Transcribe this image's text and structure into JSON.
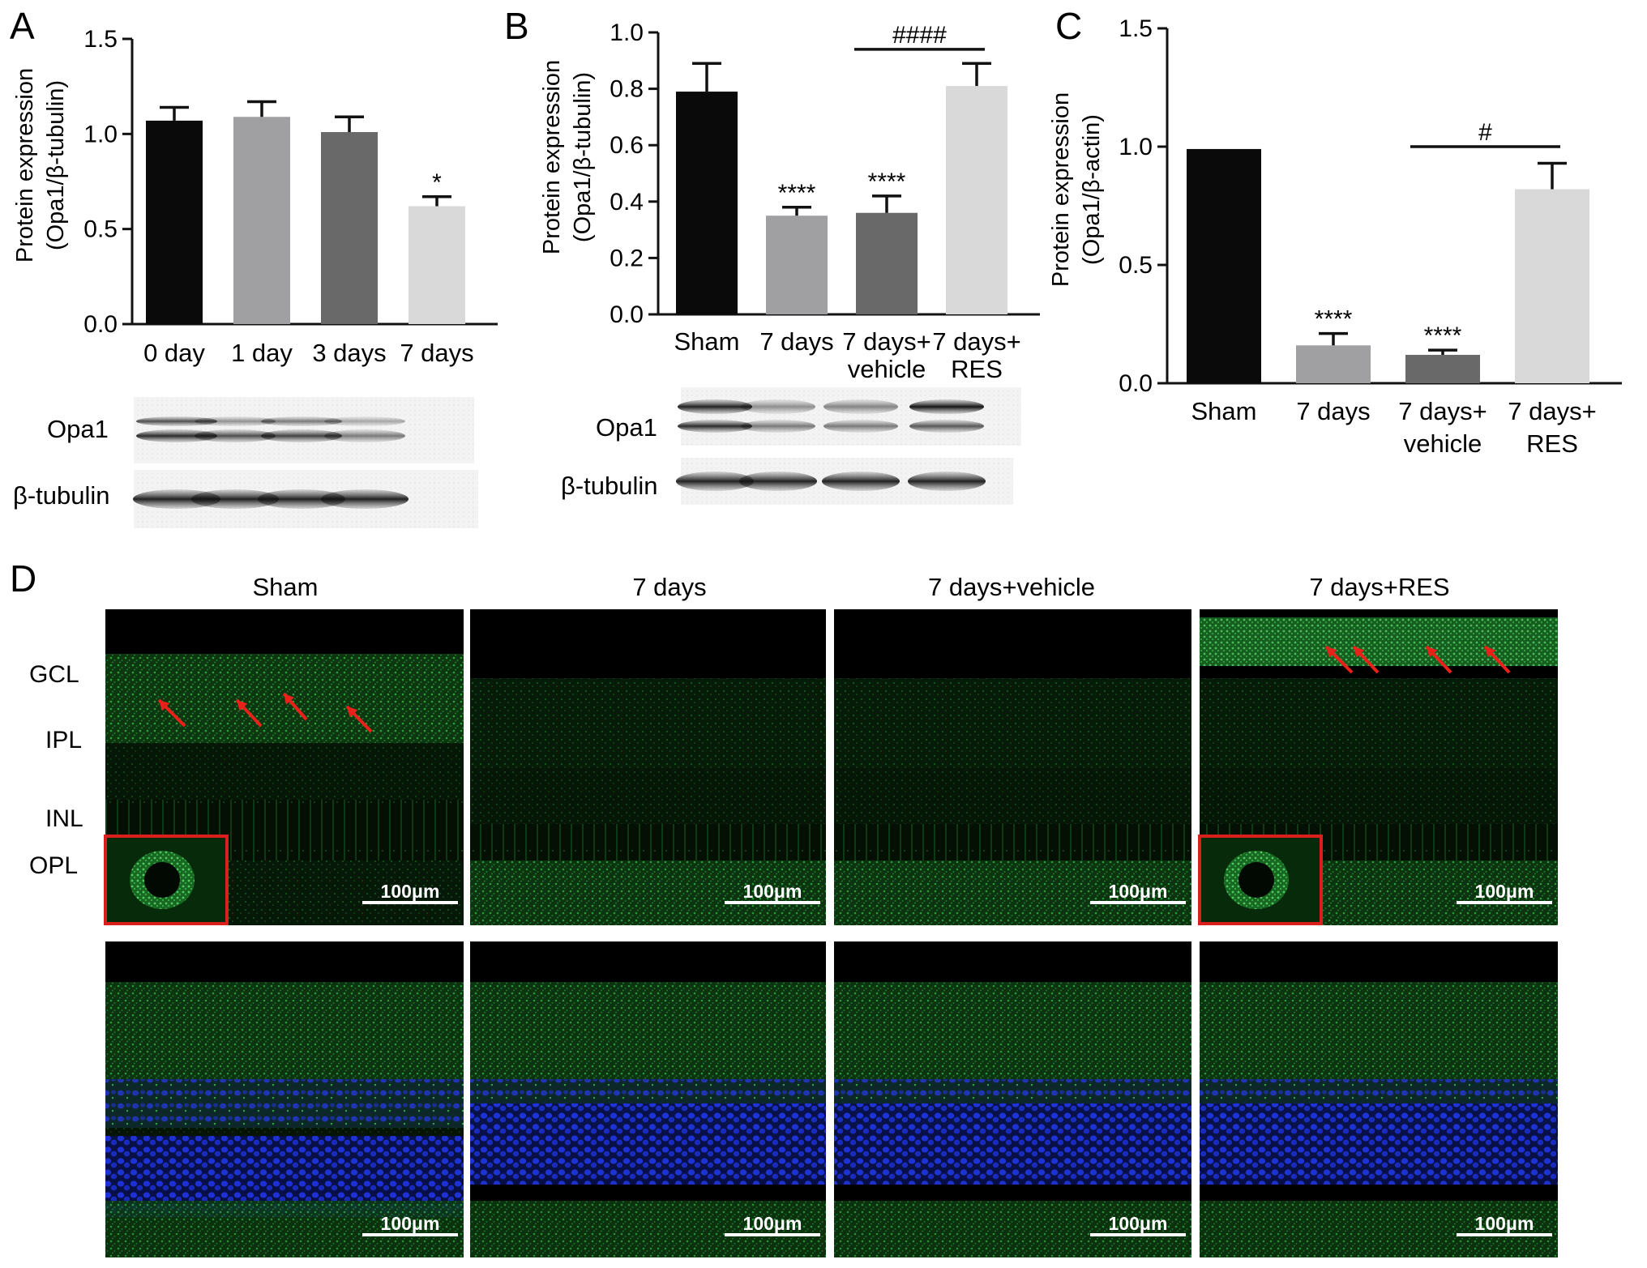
{
  "panels": {
    "A": {
      "label": "A"
    },
    "B": {
      "label": "B"
    },
    "C": {
      "label": "C"
    },
    "D": {
      "label": "D"
    }
  },
  "chart_data": [
    {
      "panel": "A",
      "type": "bar",
      "ylabel": [
        "Protein expression",
        "(Opa1/β-tubulin)"
      ],
      "ylim": [
        0,
        1.5
      ],
      "yticks": [
        "0.0",
        "0.5",
        "1.0",
        "1.5"
      ],
      "categories": [
        [
          "0 day"
        ],
        [
          "1 day"
        ],
        [
          "3 days"
        ],
        [
          "7 days"
        ]
      ],
      "values": [
        1.07,
        1.09,
        1.01,
        0.62
      ],
      "errors": [
        0.07,
        0.08,
        0.08,
        0.05
      ],
      "colors": [
        "#0a0a0a",
        "#a0a0a2",
        "#696969",
        "#d9d9d9"
      ],
      "significance": [
        "",
        "",
        "",
        "*"
      ],
      "comparisons": []
    },
    {
      "panel": "B",
      "type": "bar",
      "ylabel": [
        "Protein expression",
        "(Opa1/β-tubulin)"
      ],
      "ylim": [
        0,
        1.0
      ],
      "yticks": [
        "0.0",
        "0.2",
        "0.4",
        "0.6",
        "0.8",
        "1.0"
      ],
      "categories": [
        [
          "Sham"
        ],
        [
          "7 days"
        ],
        [
          "7 days+",
          "vehicle"
        ],
        [
          "7 days+",
          "RES"
        ]
      ],
      "values": [
        0.79,
        0.35,
        0.36,
        0.81
      ],
      "errors": [
        0.1,
        0.03,
        0.06,
        0.08
      ],
      "colors": [
        "#0a0a0a",
        "#a0a0a2",
        "#696969",
        "#d9d9d9"
      ],
      "significance": [
        "",
        "****",
        "****",
        ""
      ],
      "comparisons": [
        {
          "from": 2,
          "to": 3,
          "label": "####",
          "y": 0.94
        }
      ]
    },
    {
      "panel": "C",
      "type": "bar",
      "ylabel": [
        "Protein expression",
        "(Opa1/β-actin)"
      ],
      "ylim": [
        0,
        1.5
      ],
      "yticks": [
        "0.0",
        "0.5",
        "1.0",
        "1.5"
      ],
      "categories": [
        [
          "Sham"
        ],
        [
          "7 days"
        ],
        [
          "7 days+",
          "vehicle"
        ],
        [
          "7 days+",
          "RES"
        ]
      ],
      "values": [
        0.99,
        0.16,
        0.12,
        0.82
      ],
      "errors": [
        0,
        0.05,
        0.02,
        0.11
      ],
      "colors": [
        "#0a0a0a",
        "#a0a0a2",
        "#696969",
        "#d9d9d9"
      ],
      "significance": [
        "",
        "****",
        "****",
        ""
      ],
      "comparisons": [
        {
          "from": 2,
          "to": 3,
          "label": "#",
          "y": 1.0
        }
      ]
    }
  ],
  "blots": {
    "A": {
      "rows": [
        "Opa1",
        "β-tubulin"
      ]
    },
    "B": {
      "rows": [
        "Opa1",
        "β-tubulin"
      ]
    }
  },
  "micro": {
    "columns": [
      "Sham",
      "7 days",
      "7 days+vehicle",
      "7 days+RES"
    ],
    "layers": [
      "GCL",
      "IPL",
      "INL",
      "OPL"
    ],
    "scale_bar": "100μm",
    "arrow_color": "#e8211b",
    "inset_border_color": "#d9201c",
    "green_stain": "#22c23a",
    "blue_stain": "#1a2fe0"
  }
}
